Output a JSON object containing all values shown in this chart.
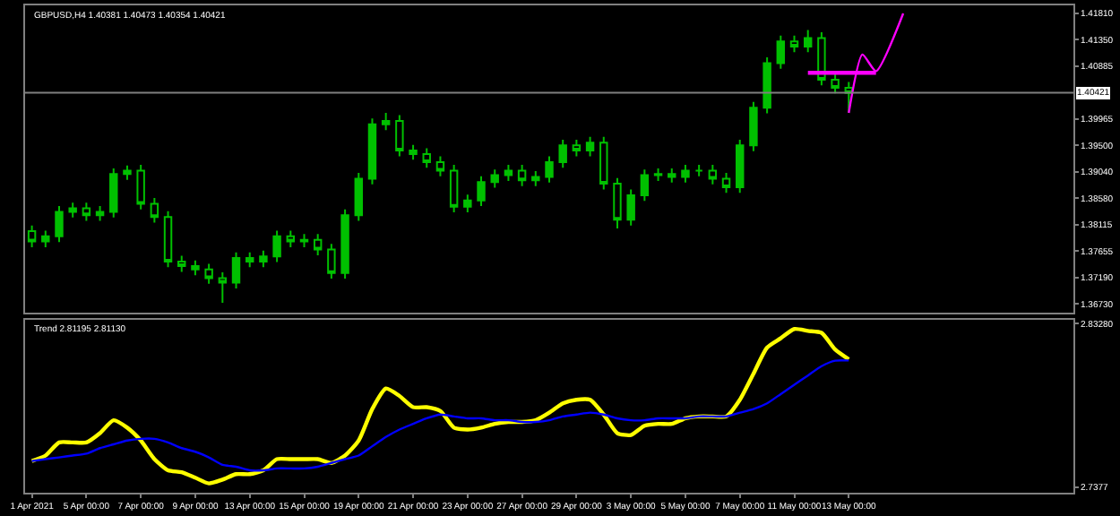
{
  "chart_data": [
    {
      "type": "candlestick",
      "title": "GBPUSD,H4 1.40381 1.40473 1.40354 1.40421",
      "color": "#00c000",
      "categories": [
        null,
        null,
        null,
        null,
        null,
        null,
        null,
        null,
        null,
        null,
        null,
        null,
        null,
        null,
        null,
        null,
        null,
        null,
        null,
        null,
        null,
        null,
        null,
        null,
        null,
        null,
        null,
        null,
        null,
        null,
        null,
        null,
        null,
        null,
        null,
        null,
        null,
        null,
        null,
        null,
        null,
        null,
        null,
        null,
        null,
        null,
        null,
        null,
        null,
        null,
        null,
        null,
        null,
        null,
        null,
        null,
        null,
        null,
        null,
        null,
        null,
        null,
        null,
        null,
        null,
        null,
        null,
        null,
        null,
        null,
        null,
        null,
        null,
        null,
        null,
        null,
        null
      ],
      "ohlc": [
        [
          1.38,
          1.381,
          1.3772,
          1.3782
        ],
        [
          1.3782,
          1.3801,
          1.3772,
          1.3791
        ],
        [
          1.3791,
          1.3844,
          1.3781,
          1.3834
        ],
        [
          1.3834,
          1.385,
          1.3824,
          1.384
        ],
        [
          1.384,
          1.385,
          1.3818,
          1.3828
        ],
        [
          1.3828,
          1.3844,
          1.3818,
          1.3834
        ],
        [
          1.3834,
          1.391,
          1.3824,
          1.39
        ],
        [
          1.39,
          1.3915,
          1.389,
          1.3906
        ],
        [
          1.3906,
          1.3916,
          1.3838,
          1.3848
        ],
        [
          1.3848,
          1.3858,
          1.3815,
          1.3825
        ],
        [
          1.3825,
          1.3835,
          1.3737,
          1.3747
        ],
        [
          1.3747,
          1.3757,
          1.3729,
          1.3739
        ],
        [
          1.3739,
          1.3749,
          1.3723,
          1.3733
        ],
        [
          1.3733,
          1.3743,
          1.3708,
          1.3718
        ],
        [
          1.3718,
          1.3728,
          1.3675,
          1.371
        ],
        [
          1.371,
          1.3763,
          1.37,
          1.3753
        ],
        [
          1.3753,
          1.3763,
          1.3737,
          1.3747
        ],
        [
          1.3747,
          1.3766,
          1.3737,
          1.3756
        ],
        [
          1.3756,
          1.3801,
          1.3746,
          1.3791
        ],
        [
          1.3791,
          1.3801,
          1.3772,
          1.3782
        ],
        [
          1.3782,
          1.3795,
          1.3772,
          1.3785
        ],
        [
          1.3785,
          1.3795,
          1.3758,
          1.3768
        ],
        [
          1.3768,
          1.3778,
          1.3717,
          1.3727
        ],
        [
          1.3727,
          1.3838,
          1.3717,
          1.3828
        ],
        [
          1.3828,
          1.3902,
          1.3818,
          1.3892
        ],
        [
          1.3892,
          1.3997,
          1.3882,
          1.3987
        ],
        [
          1.3987,
          1.4007,
          1.3977,
          1.3993
        ],
        [
          1.3993,
          1.4003,
          1.3931,
          1.3941
        ],
        [
          1.3941,
          1.3951,
          1.3925,
          1.3935
        ],
        [
          1.3935,
          1.3945,
          1.3911,
          1.3921
        ],
        [
          1.3921,
          1.3931,
          1.3896,
          1.3906
        ],
        [
          1.3906,
          1.3916,
          1.3833,
          1.3843
        ],
        [
          1.3843,
          1.3864,
          1.3833,
          1.3854
        ],
        [
          1.3854,
          1.3896,
          1.3844,
          1.3886
        ],
        [
          1.3886,
          1.3908,
          1.3876,
          1.3898
        ],
        [
          1.3898,
          1.3916,
          1.3888,
          1.3906
        ],
        [
          1.3906,
          1.3916,
          1.3879,
          1.3889
        ],
        [
          1.3889,
          1.3905,
          1.3879,
          1.3895
        ],
        [
          1.3895,
          1.3931,
          1.3885,
          1.3921
        ],
        [
          1.3921,
          1.396,
          1.3911,
          1.395
        ],
        [
          1.395,
          1.396,
          1.3931,
          1.3941
        ],
        [
          1.3941,
          1.3965,
          1.3931,
          1.3955
        ],
        [
          1.3955,
          1.3965,
          1.3873,
          1.3883
        ],
        [
          1.3883,
          1.3893,
          1.3805,
          1.382
        ],
        [
          1.382,
          1.3873,
          1.381,
          1.3863
        ],
        [
          1.3863,
          1.3908,
          1.3853,
          1.3898
        ],
        [
          1.3898,
          1.391,
          1.3888,
          1.39
        ],
        [
          1.39,
          1.391,
          1.3885,
          1.3895
        ],
        [
          1.3895,
          1.3916,
          1.3885,
          1.3906
        ],
        [
          1.3906,
          1.3916,
          1.3896,
          1.3906
        ],
        [
          1.3906,
          1.3916,
          1.3882,
          1.3892
        ],
        [
          1.3892,
          1.3902,
          1.3867,
          1.3877
        ],
        [
          1.3877,
          1.396,
          1.3867,
          1.395
        ],
        [
          1.395,
          1.4026,
          1.394,
          1.4016
        ],
        [
          1.4016,
          1.4104,
          1.4006,
          1.4094
        ],
        [
          1.4094,
          1.4142,
          1.4084,
          1.4132
        ],
        [
          1.4132,
          1.4142,
          1.4113,
          1.4123
        ],
        [
          1.4123,
          1.4152,
          1.4113,
          1.4138
        ],
        [
          1.4138,
          1.4148,
          1.4055,
          1.4065
        ],
        [
          1.4065,
          1.4075,
          1.4041,
          1.4051
        ],
        [
          1.4051,
          1.4061,
          1.4007,
          1.4042
        ],
        null,
        null,
        null,
        null,
        null,
        null,
        null,
        null,
        null,
        null,
        null,
        null,
        null,
        null,
        null,
        null
      ],
      "series": [
        {
          "type": "line",
          "color": "#ff00ff",
          "values": [
            null,
            null,
            null,
            null,
            null,
            null,
            null,
            null,
            null,
            null,
            null,
            null,
            null,
            null,
            null,
            null,
            null,
            null,
            null,
            null,
            null,
            null,
            null,
            null,
            null,
            null,
            null,
            null,
            null,
            null,
            null,
            null,
            null,
            null,
            null,
            null,
            null,
            null,
            null,
            null,
            null,
            null,
            null,
            null,
            null,
            null,
            null,
            null,
            null,
            null,
            null,
            null,
            null,
            null,
            null,
            null,
            null,
            1.4077,
            null,
            null,
            null,
            null,
            1.4077,
            null,
            null,
            null,
            null,
            null,
            null,
            null,
            null,
            null,
            null,
            null,
            null,
            null,
            null
          ]
        },
        {
          "type": "line",
          "color": "#ff00ff",
          "values": [
            null,
            null,
            null,
            null,
            null,
            null,
            null,
            null,
            null,
            null,
            null,
            null,
            null,
            null,
            null,
            null,
            null,
            null,
            null,
            null,
            null,
            null,
            null,
            null,
            null,
            null,
            null,
            null,
            null,
            null,
            null,
            null,
            null,
            null,
            null,
            null,
            null,
            null,
            null,
            null,
            null,
            null,
            null,
            null,
            null,
            null,
            null,
            null,
            null,
            null,
            null,
            null,
            null,
            null,
            null,
            null,
            null,
            null,
            null,
            null,
            1.4007,
            1.4109,
            1.408,
            null,
            1.4181,
            null,
            null,
            null,
            null,
            null,
            null,
            null,
            null,
            null,
            null,
            null,
            null
          ]
        }
      ],
      "ref_lines": [
        {
          "axis": "y",
          "value": 1.40421,
          "label": "1.40421",
          "color": "#808080"
        }
      ],
      "ylim": [
        1.3658,
        1.4195
      ],
      "yticks": [
        {
          "value": 1.4181,
          "label": "1.41810"
        },
        {
          "value": 1.4135,
          "label": "1.41350"
        },
        {
          "value": 1.40885,
          "label": "1.40885"
        },
        {
          "value": 1.39965,
          "label": "1.39965"
        },
        {
          "value": 1.395,
          "label": "1.39500"
        },
        {
          "value": 1.3904,
          "label": "1.39040"
        },
        {
          "value": 1.3858,
          "label": "1.38580"
        },
        {
          "value": 1.38115,
          "label": "1.38115"
        },
        {
          "value": 1.37655,
          "label": "1.37655"
        },
        {
          "value": 1.3719,
          "label": "1.37190"
        },
        {
          "value": 1.3673,
          "label": "1.36730"
        }
      ],
      "tick_labels": "y"
    },
    {
      "type": "line",
      "annotations": [
        "Trend 2.81195 2.81130"
      ],
      "categories": [
        "1 Apr 2021",
        null,
        null,
        null,
        "5 Apr 00:00",
        null,
        null,
        null,
        "7 Apr 00:00",
        null,
        null,
        null,
        "9 Apr 00:00",
        null,
        null,
        null,
        "13 Apr 00:00",
        null,
        null,
        null,
        "15 Apr 00:00",
        null,
        null,
        null,
        "19 Apr 00:00",
        null,
        null,
        null,
        "21 Apr 00:00",
        null,
        null,
        null,
        "23 Apr 00:00",
        null,
        null,
        null,
        "27 Apr 00:00",
        null,
        null,
        null,
        "29 Apr 00:00",
        null,
        null,
        null,
        "3 May 00:00",
        null,
        null,
        null,
        "5 May 00:00",
        null,
        null,
        null,
        "7 May 00:00",
        null,
        null,
        null,
        "11 May 00:00",
        null,
        null,
        null,
        "13 May 00:00",
        null,
        null,
        null,
        null,
        null,
        null,
        null,
        null,
        null,
        null,
        null,
        null,
        null,
        null,
        null,
        null
      ],
      "series": [
        {
          "color": "#ffff00",
          "values": [
            2.7529,
            2.7561,
            2.7637,
            2.7637,
            2.7637,
            2.7691,
            2.7766,
            2.7723,
            2.7648,
            2.754,
            2.7475,
            2.7464,
            2.7432,
            2.7399,
            2.7421,
            2.7453,
            2.7453,
            2.7475,
            2.754,
            2.754,
            2.754,
            2.754,
            2.7518,
            2.7561,
            2.7648,
            2.7831,
            2.795,
            2.7907,
            2.7842,
            2.7842,
            2.782,
            2.7723,
            2.7712,
            2.7723,
            2.7745,
            2.7756,
            2.7756,
            2.7766,
            2.781,
            2.7864,
            2.7885,
            2.7885,
            2.7799,
            2.7691,
            2.768,
            2.7734,
            2.7745,
            2.7745,
            2.7777,
            2.7788,
            2.7788,
            2.7788,
            2.7885,
            2.8036,
            2.8188,
            2.8242,
            2.8296,
            2.8285,
            2.8274,
            2.8177,
            2.812,
            null,
            null,
            null,
            null,
            null,
            null,
            null,
            null,
            null,
            null,
            null,
            null,
            null,
            null,
            null,
            null
          ]
        },
        {
          "color": "#0000ff",
          "values": [
            2.7529,
            2.754,
            2.755,
            2.7561,
            2.7572,
            2.7604,
            2.7626,
            2.7648,
            2.7658,
            2.7658,
            2.7637,
            2.7604,
            2.7583,
            2.755,
            2.7507,
            2.7496,
            2.7475,
            2.7475,
            2.7486,
            2.7486,
            2.7486,
            2.7496,
            2.7518,
            2.754,
            2.7561,
            2.7615,
            2.7669,
            2.7712,
            2.7745,
            2.7777,
            2.7799,
            2.7788,
            2.7777,
            2.7777,
            2.7766,
            2.7766,
            2.7756,
            2.7756,
            2.7766,
            2.7788,
            2.7799,
            2.781,
            2.7799,
            2.7777,
            2.7766,
            2.7766,
            2.7777,
            2.7777,
            2.7777,
            2.7788,
            2.7788,
            2.7788,
            2.781,
            2.7831,
            2.7864,
            2.7918,
            2.7972,
            2.8026,
            2.808,
            2.8112,
            2.8113,
            null,
            null,
            null,
            null,
            null,
            null,
            null,
            null,
            null,
            null,
            null,
            null,
            null,
            null,
            null,
            null
          ]
        }
      ],
      "ylim": [
        2.7345,
        2.835
      ],
      "yticks": [
        {
          "value": 2.8328,
          "label": "2.83280"
        },
        2.7377
      ]
    }
  ]
}
